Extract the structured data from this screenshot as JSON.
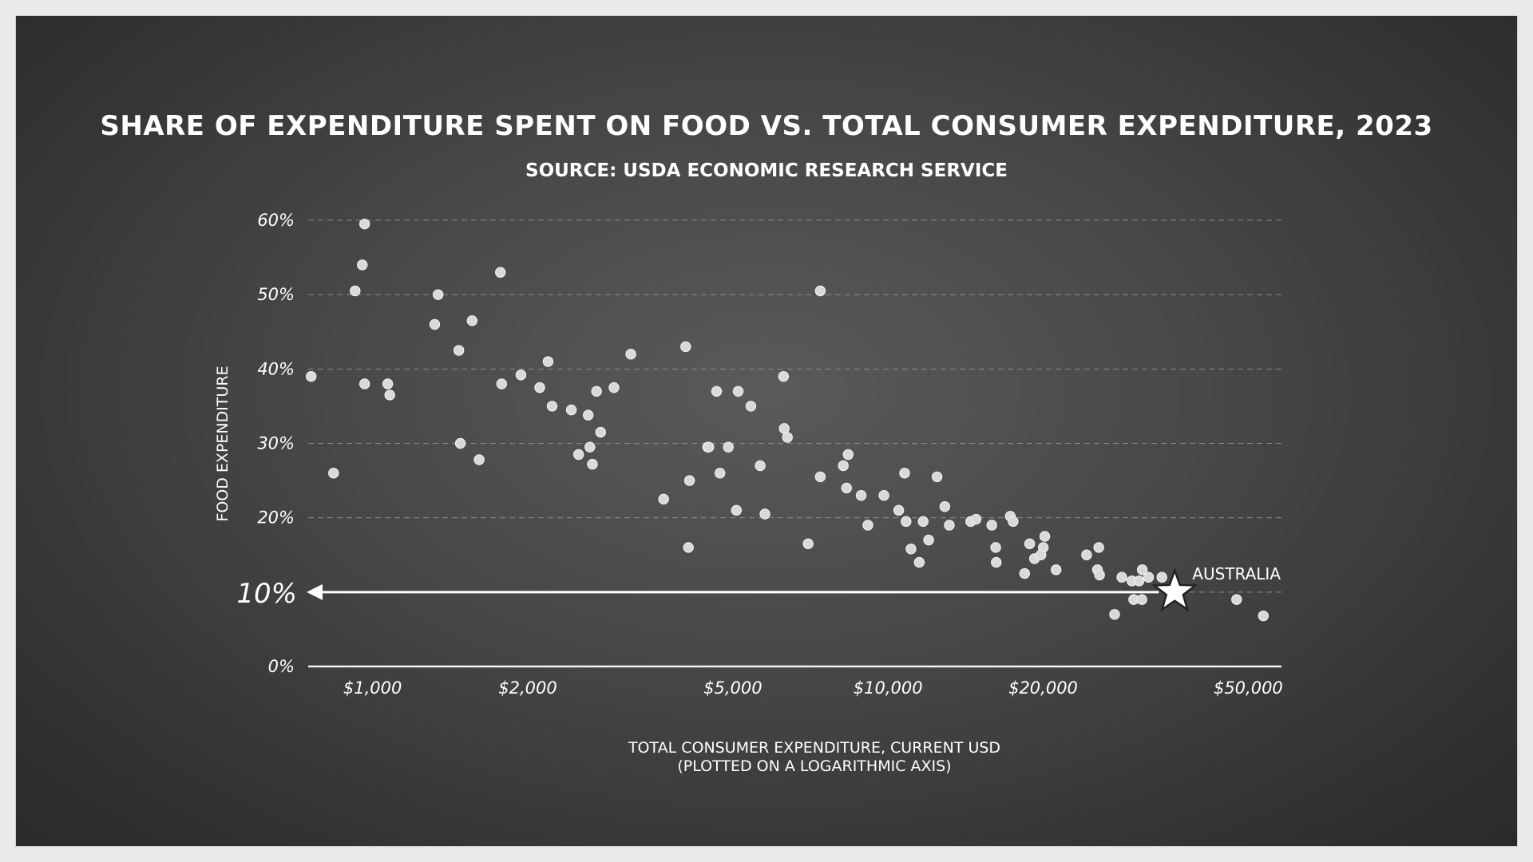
{
  "chart_data": {
    "type": "scatter",
    "title": "SHARE OF EXPENDITURE SPENT ON FOOD VS. TOTAL CONSUMER EXPENDITURE, 2023",
    "subtitle": "SOURCE: USDA ECONOMIC RESEARCH SERVICE",
    "xlabel": "TOTAL CONSUMER EXPENDITURE, CURRENT USD",
    "xlabel_note": "(PLOTTED ON A LOGARITHMIC AXIS)",
    "ylabel": "FOOD EXPENDITURE",
    "x_scale": "log",
    "xlim": [
      750,
      58000
    ],
    "ylim": [
      0,
      60
    ],
    "x_ticks": [
      {
        "value": 1000,
        "label": "$1,000"
      },
      {
        "value": 2000,
        "label": "$2,000"
      },
      {
        "value": 5000,
        "label": "$5,000"
      },
      {
        "value": 10000,
        "label": "$10,000"
      },
      {
        "value": 20000,
        "label": "$20,000"
      },
      {
        "value": 50000,
        "label": "$50,000"
      }
    ],
    "y_ticks": [
      {
        "value": 0,
        "label": "0%"
      },
      {
        "value": 10,
        "label": ""
      },
      {
        "value": 20,
        "label": "20%"
      },
      {
        "value": 30,
        "label": "30%"
      },
      {
        "value": 40,
        "label": "40%"
      },
      {
        "value": 50,
        "label": "50%"
      },
      {
        "value": 60,
        "label": "60%"
      }
    ],
    "grid": "horizontal dashed",
    "colors": {
      "background": "#3f3f3f",
      "points": "#d9d9d9",
      "text": "#ffffff",
      "grid": "#8a8a8a"
    },
    "points": [
      [
        760,
        39
      ],
      [
        840,
        26
      ],
      [
        925,
        50.5
      ],
      [
        955,
        54
      ],
      [
        965,
        59.5
      ],
      [
        965,
        38
      ],
      [
        1070,
        38
      ],
      [
        1080,
        36.5
      ],
      [
        1320,
        46
      ],
      [
        1340,
        50
      ],
      [
        1480,
        30
      ],
      [
        1470,
        42.5
      ],
      [
        1560,
        46.5
      ],
      [
        1610,
        27.8
      ],
      [
        1770,
        53
      ],
      [
        1780,
        38
      ],
      [
        1940,
        39.2
      ],
      [
        2110,
        37.5
      ],
      [
        2190,
        41
      ],
      [
        2230,
        35
      ],
      [
        2430,
        34.5
      ],
      [
        2510,
        28.5
      ],
      [
        2620,
        33.8
      ],
      [
        2640,
        29.5
      ],
      [
        2670,
        27.2
      ],
      [
        2720,
        37
      ],
      [
        2770,
        31.5
      ],
      [
        2940,
        37.5
      ],
      [
        3170,
        42
      ],
      [
        3670,
        22.5
      ],
      [
        4050,
        43
      ],
      [
        4100,
        16
      ],
      [
        4120,
        25
      ],
      [
        4470,
        29.5
      ],
      [
        4490,
        29.5
      ],
      [
        4650,
        37
      ],
      [
        4720,
        26
      ],
      [
        4900,
        29.5
      ],
      [
        5080,
        21
      ],
      [
        5120,
        37
      ],
      [
        5420,
        35
      ],
      [
        5650,
        27
      ],
      [
        5770,
        20.5
      ],
      [
        6290,
        32
      ],
      [
        6270,
        39
      ],
      [
        6380,
        30.8
      ],
      [
        7000,
        16.5
      ],
      [
        7390,
        25.5
      ],
      [
        7390,
        50.5
      ],
      [
        8190,
        27
      ],
      [
        8370,
        28.5
      ],
      [
        8310,
        24
      ],
      [
        8870,
        23
      ],
      [
        9140,
        19
      ],
      [
        9820,
        23
      ],
      [
        10490,
        21
      ],
      [
        10840,
        19.5
      ],
      [
        10770,
        26
      ],
      [
        11080,
        15.8
      ],
      [
        11500,
        14
      ],
      [
        11700,
        19.5
      ],
      [
        11990,
        17
      ],
      [
        12450,
        25.5
      ],
      [
        12890,
        21.5
      ],
      [
        13150,
        19
      ],
      [
        14470,
        19.5
      ],
      [
        14820,
        19.8
      ],
      [
        15900,
        19
      ],
      [
        16220,
        14
      ],
      [
        16180,
        16
      ],
      [
        17270,
        20.2
      ],
      [
        17490,
        19.5
      ],
      [
        18410,
        12.5
      ],
      [
        18830,
        16.5
      ],
      [
        19240,
        14.5
      ],
      [
        20010,
        16
      ],
      [
        20150,
        17.5
      ],
      [
        19800,
        15
      ],
      [
        21190,
        13
      ],
      [
        24280,
        15
      ],
      [
        25490,
        13
      ],
      [
        25640,
        16
      ],
      [
        25730,
        12.3
      ],
      [
        27520,
        7
      ],
      [
        28420,
        12
      ],
      [
        29730,
        11.5
      ],
      [
        29970,
        9
      ],
      [
        31090,
        9
      ],
      [
        31140,
        13
      ],
      [
        30700,
        11.5
      ],
      [
        32030,
        12
      ],
      [
        33990,
        12
      ],
      [
        47460,
        9
      ],
      [
        53490,
        6.8
      ]
    ],
    "highlight": {
      "label": "AUSTRALIA",
      "x": 36000,
      "y": 10
    },
    "annotation": {
      "label": "10%",
      "y": 10
    }
  }
}
